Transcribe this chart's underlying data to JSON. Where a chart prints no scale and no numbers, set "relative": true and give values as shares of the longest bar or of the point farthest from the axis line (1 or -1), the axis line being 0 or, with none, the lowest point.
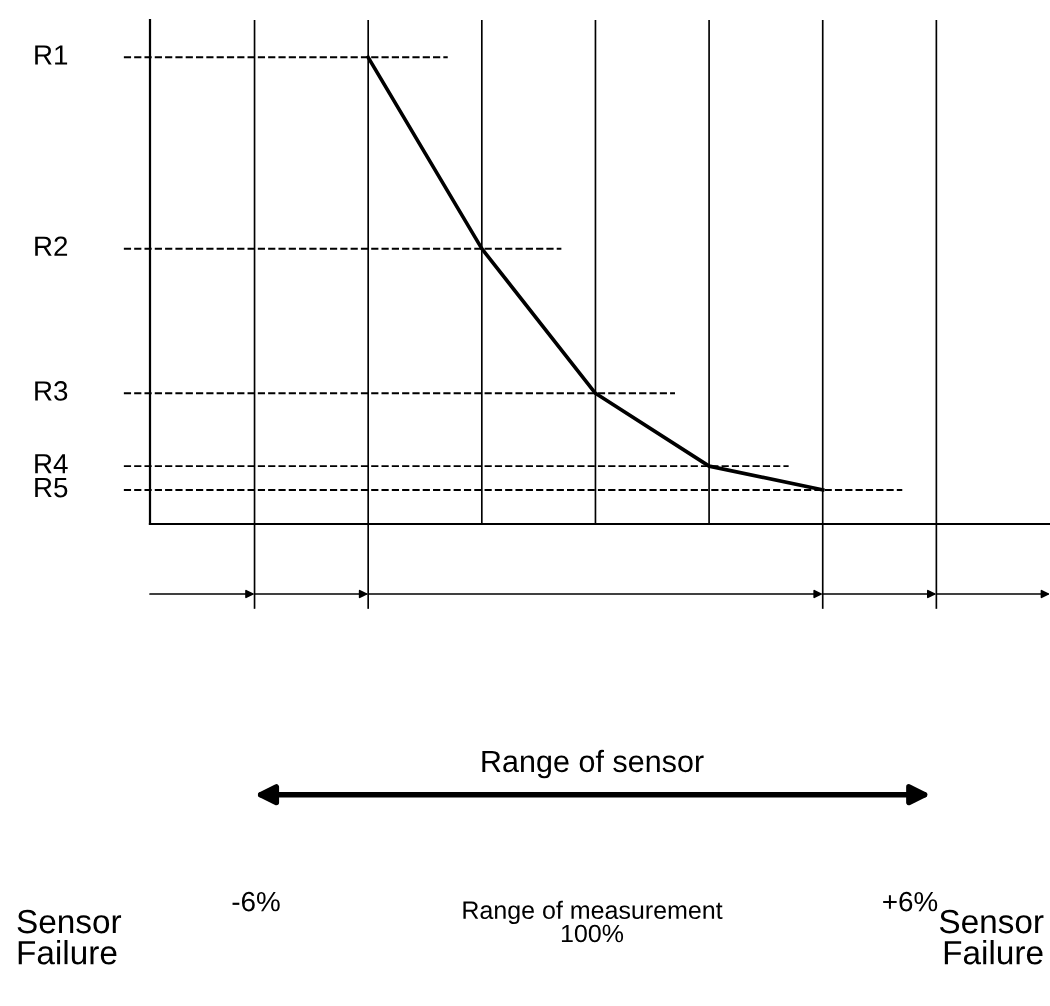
{
  "chart_data": {
    "type": "line",
    "categories": [
      null,
      null,
      null,
      null,
      null,
      null,
      null
    ],
    "series": [
      {
        "color": "#000000",
        "values": [
          null,
          1,
          0.59,
          0.28,
          0.124,
          0.073,
          null
        ]
      }
    ],
    "relative": true,
    "grid": "x",
    "marker": "none",
    "line_style": "solid",
    "ref_lines": [
      {
        "axis": "y",
        "value": 1,
        "label": "R1",
        "line_style": "dashed"
      },
      {
        "axis": "y",
        "value": 0.59,
        "label": "R2",
        "line_style": "dashed"
      },
      {
        "axis": "y",
        "value": 0.28,
        "label": "R3",
        "line_style": "dashed"
      },
      {
        "axis": "y",
        "value": 0.124,
        "label": "R4",
        "line_style": "dashed"
      },
      {
        "axis": "y",
        "value": 0.073,
        "label": "R5",
        "line_style": "dashed"
      }
    ],
    "annotations": [
      "Range of sensor",
      "Sensor\nFailure",
      "-6%",
      "Range of measurement\n100%",
      "+6%",
      "Sensor\nFailure"
    ]
  }
}
